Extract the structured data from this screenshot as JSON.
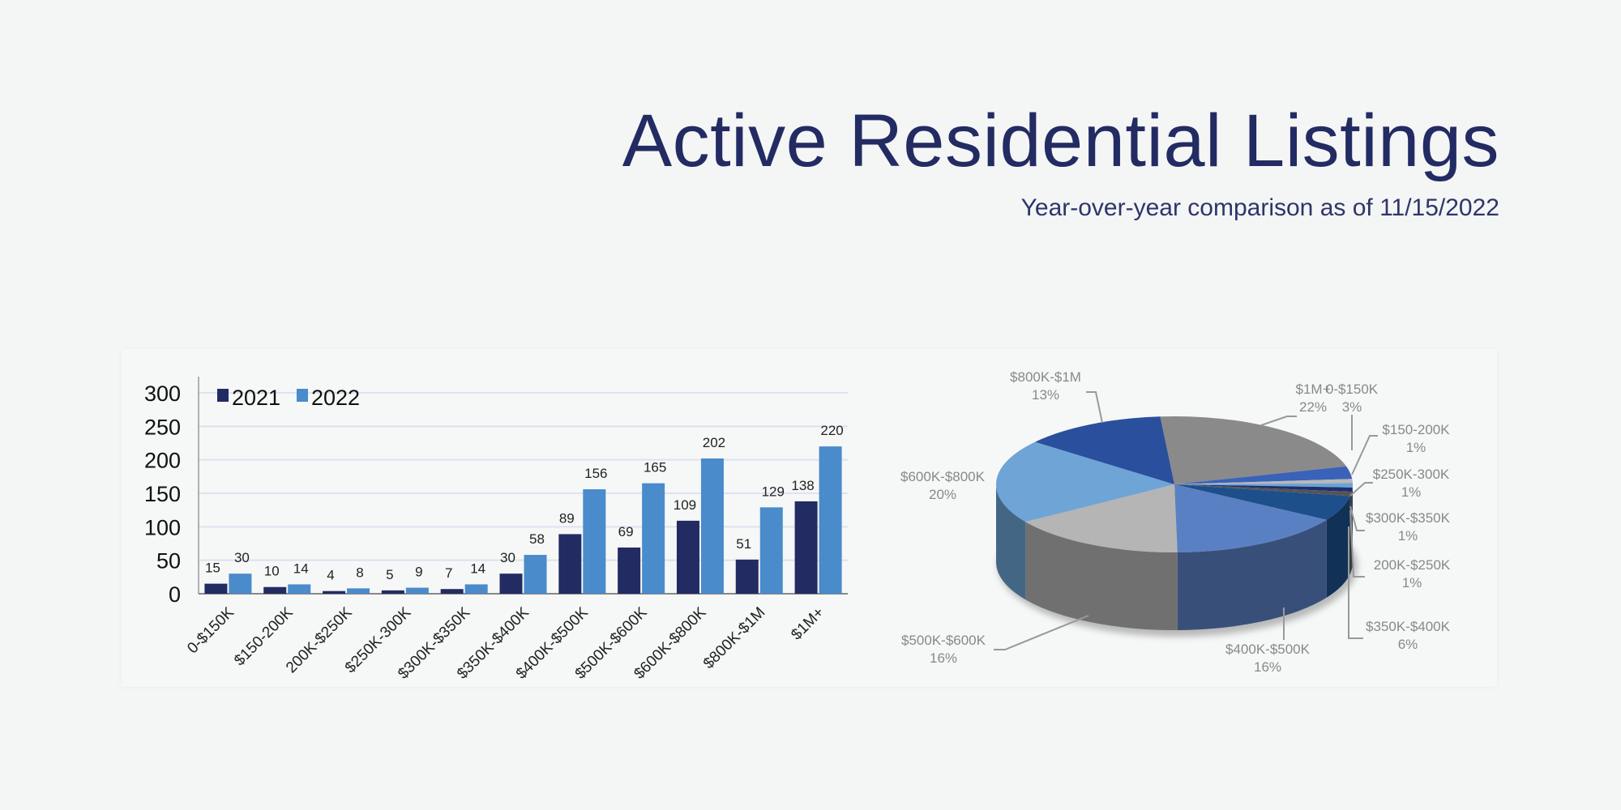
{
  "header": {
    "title": "Active Residential Listings",
    "subtitle": "Year-over-year comparison as of 11/15/2022"
  },
  "colors": {
    "title": "#232b63",
    "series_2021": "#232b63",
    "series_2022": "#4a8bcb"
  },
  "chart_data": [
    {
      "type": "bar",
      "categories": [
        "0-$150K",
        "$150-200K",
        "200K-$250K",
        "$250K-300K",
        "$300K-$350K",
        "$350K-$400K",
        "$400K-$500K",
        "$500K-$600K",
        "$600K-$800K",
        "$800K-$1M",
        "$1M+"
      ],
      "series": [
        {
          "name": "2021",
          "values": [
            15,
            10,
            4,
            5,
            7,
            30,
            89,
            69,
            109,
            51,
            138
          ],
          "color": "#232b63"
        },
        {
          "name": "2022",
          "values": [
            30,
            14,
            8,
            9,
            14,
            58,
            156,
            165,
            202,
            129,
            220
          ],
          "color": "#4a8bcb"
        }
      ],
      "yticks": [
        "0",
        "50",
        "100",
        "150",
        "200",
        "250",
        "300"
      ],
      "ylim": [
        0,
        300
      ],
      "grid": true,
      "legend": "top-left",
      "data_labels": true
    },
    {
      "type": "pie",
      "style": "3d",
      "slices": [
        {
          "label": "$1M+",
          "pct": "22%",
          "value": 22,
          "color": "#8a8a8a"
        },
        {
          "label": "0-$150K",
          "pct": "3%",
          "value": 3,
          "color": "#3a62b8"
        },
        {
          "label": "$150-200K",
          "pct": "1%",
          "value": 1,
          "color": "#b8b8b8"
        },
        {
          "label": "$250K-300K",
          "pct": "1%",
          "value": 1,
          "color": "#6aa3d8"
        },
        {
          "label": "$300K-$350K",
          "pct": "1%",
          "value": 1,
          "color": "#1f2f6e"
        },
        {
          "label": "200K-$250K",
          "pct": "1%",
          "value": 1,
          "color": "#555555"
        },
        {
          "label": "$350K-$400K",
          "pct": "6%",
          "value": 6,
          "color": "#1d4f8a"
        },
        {
          "label": "$400K-$500K",
          "pct": "16%",
          "value": 16,
          "color": "#5a80c4"
        },
        {
          "label": "$500K-$600K",
          "pct": "16%",
          "value": 16,
          "color": "#b5b5b5"
        },
        {
          "label": "$600K-$800K",
          "pct": "20%",
          "value": 20,
          "color": "#6ea4d6"
        },
        {
          "label": "$800K-$1M",
          "pct": "13%",
          "value": 13,
          "color": "#2a4f9c"
        }
      ]
    }
  ]
}
